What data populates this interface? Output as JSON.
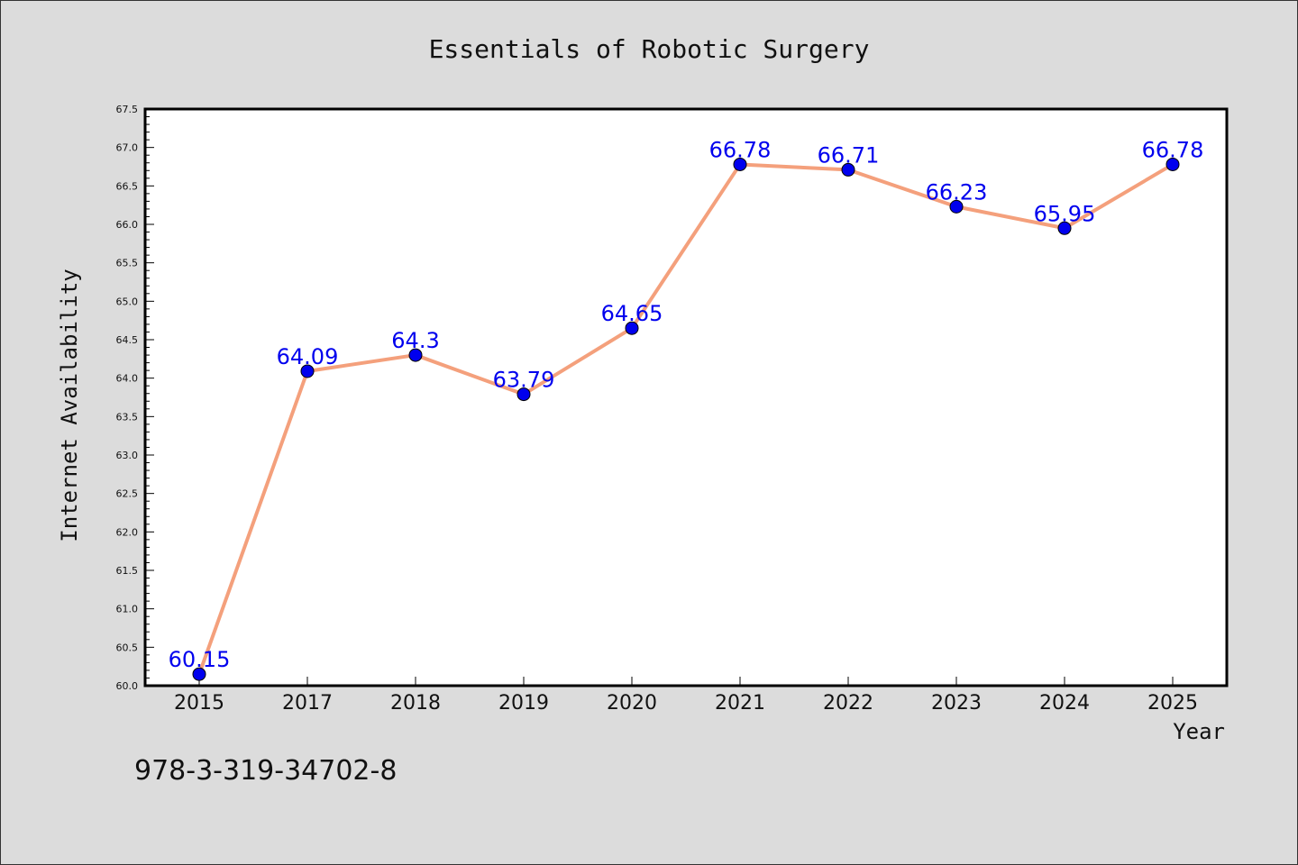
{
  "chart_data": {
    "type": "line",
    "title": "Essentials of Robotic Surgery",
    "xlabel": "Year",
    "ylabel": "Internet Availability",
    "categories": [
      "2015",
      "2017",
      "2018",
      "2019",
      "2020",
      "2021",
      "2022",
      "2023",
      "2024",
      "2025"
    ],
    "series": [
      {
        "values": [
          60.15,
          64.09,
          64.3,
          63.79,
          64.65,
          66.78,
          66.71,
          66.23,
          65.95,
          66.78
        ],
        "data_labels": [
          "60.15",
          "64.09",
          "64.3",
          "63.79",
          "64.65",
          "66.78",
          "66.71",
          "66.23",
          "65.95",
          "66.78"
        ],
        "line_color": "#f4a07c",
        "marker_color": "#0000ee"
      }
    ],
    "ylim": [
      60.0,
      67.5
    ],
    "y_ticks": [
      "60.0",
      "60.5",
      "61.0",
      "61.5",
      "62.0",
      "62.5",
      "63.0",
      "63.5",
      "64.0",
      "64.5",
      "65.0",
      "65.5",
      "66.0",
      "66.5",
      "67.0",
      "67.5"
    ],
    "grid": false,
    "legend": "none"
  },
  "annotation": "978-3-319-34702-8",
  "colors": {
    "background": "#dcdcdc",
    "plot_background": "#ffffff",
    "data_label": "#0000ee"
  }
}
